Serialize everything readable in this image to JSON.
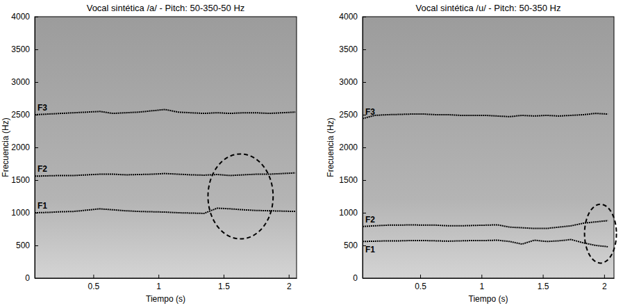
{
  "chart_data": [
    {
      "type": "line",
      "title": "Vocal sintética /a/ - Pitch: 50-350-50 Hz",
      "x_label": "Tiempo (s)",
      "y_label": "Frecuencia (Hz)",
      "xlim": [
        0.05,
        2.06
      ],
      "xticks": [
        0.5,
        1,
        1.5,
        2
      ],
      "ylim": [
        0,
        4000
      ],
      "yticks": [
        0,
        500,
        1000,
        1500,
        2000,
        2500,
        3000,
        3500,
        4000
      ],
      "x": [
        0.05,
        0.15,
        0.25,
        0.35,
        0.45,
        0.55,
        0.65,
        0.75,
        0.85,
        0.95,
        1.05,
        1.15,
        1.25,
        1.35,
        1.45,
        1.55,
        1.65,
        1.75,
        1.85,
        1.95,
        2.05
      ],
      "series": [
        {
          "name": "F1",
          "color": "#000000",
          "values": [
            1000,
            1005,
            1015,
            1020,
            1040,
            1060,
            1045,
            1030,
            1020,
            1015,
            1010,
            1000,
            995,
            990,
            1070,
            1060,
            1045,
            1035,
            1030,
            1025,
            1020
          ]
        },
        {
          "name": "F2",
          "color": "#000000",
          "values": [
            1560,
            1565,
            1570,
            1570,
            1580,
            1590,
            1590,
            1580,
            1585,
            1590,
            1600,
            1590,
            1580,
            1575,
            1585,
            1570,
            1580,
            1590,
            1590,
            1600,
            1610
          ]
        },
        {
          "name": "F3",
          "color": "#000000",
          "values": [
            2500,
            2510,
            2520,
            2530,
            2540,
            2550,
            2520,
            2530,
            2540,
            2560,
            2580,
            2540,
            2530,
            2520,
            2530,
            2520,
            2530,
            2530,
            2520,
            2530,
            2540
          ]
        }
      ],
      "highlight": {
        "center": [
          1.63,
          1250
        ],
        "x_radius": 0.25,
        "y_radius": 650
      }
    },
    {
      "type": "line",
      "title": "Vocal sintética /u/ - Pitch: 50-350 Hz",
      "x_label": "Tiempo (s)",
      "y_label": "Frecuencia (Hz)",
      "xlim": [
        0.03,
        2.08
      ],
      "xticks": [
        0.5,
        1,
        1.5,
        2
      ],
      "ylim": [
        0,
        4000
      ],
      "yticks": [
        0,
        500,
        1000,
        1500,
        2000,
        2500,
        3000,
        3500,
        4000
      ],
      "x": [
        0.03,
        0.13,
        0.23,
        0.33,
        0.43,
        0.53,
        0.63,
        0.73,
        0.83,
        0.93,
        1.03,
        1.13,
        1.23,
        1.33,
        1.43,
        1.53,
        1.63,
        1.73,
        1.83,
        1.93,
        2.03
      ],
      "series": [
        {
          "name": "F1",
          "color": "#000000",
          "values": [
            560,
            565,
            570,
            570,
            575,
            575,
            570,
            565,
            570,
            575,
            575,
            580,
            560,
            520,
            580,
            560,
            570,
            590,
            540,
            500,
            480
          ]
        },
        {
          "name": "F2",
          "color": "#000000",
          "values": [
            790,
            800,
            810,
            810,
            815,
            810,
            810,
            800,
            800,
            805,
            810,
            815,
            780,
            770,
            760,
            760,
            780,
            800,
            840,
            860,
            880
          ]
        },
        {
          "name": "F3",
          "color": "#000000",
          "values": [
            2440,
            2490,
            2500,
            2505,
            2510,
            2510,
            2500,
            2500,
            2490,
            2490,
            2490,
            2480,
            2470,
            2490,
            2480,
            2490,
            2480,
            2490,
            2500,
            2520,
            2510
          ]
        }
      ],
      "highlight": {
        "center": [
          1.97,
          680
        ],
        "x_radius": 0.13,
        "y_radius": 450
      }
    }
  ]
}
